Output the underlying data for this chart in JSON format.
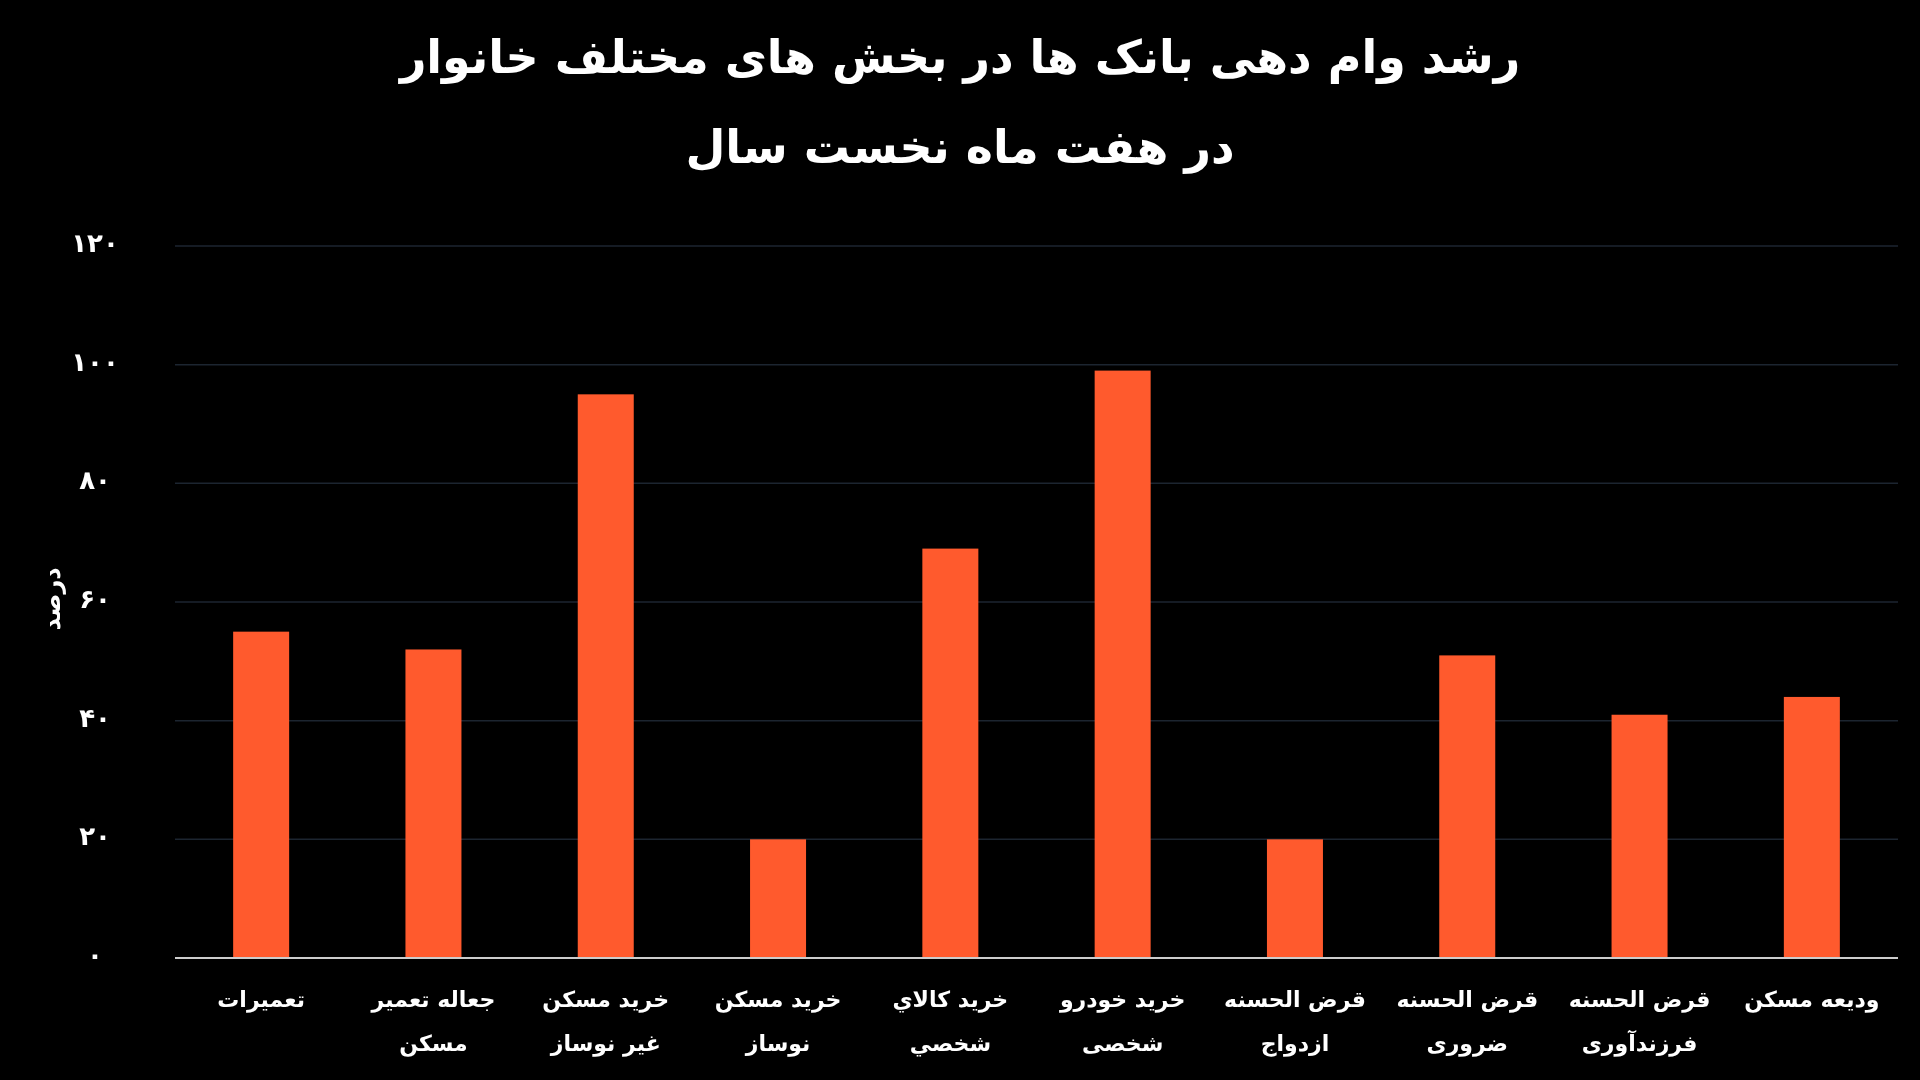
{
  "chart_data": {
    "type": "bar",
    "title": "رشد وام دهی بانک ها در بخش های مختلف خانوار",
    "subtitle": "در هفت ماه نخست  سال",
    "ylabel": "درصد",
    "categories": [
      "تعمیرات",
      "جعاله تعمیر مسکن",
      "خرید مسکن غیر نوساز",
      "خرید مسکن نوساز",
      "خرید کالاي شخصي",
      "خرید خودرو شخصی",
      "قرض الحسنه ازدواج",
      "قرض الحسنه ضروری",
      "قرض الحسنه فرزندآوری",
      "ودیعه مسکن"
    ],
    "values": [
      55,
      52,
      95,
      20,
      69,
      99,
      20,
      51,
      41,
      44
    ],
    "color": "#ff5a2d",
    "ylim": [
      0,
      120
    ],
    "yticks": [
      {
        "value": 0,
        "label": "۰"
      },
      {
        "value": 20,
        "label": "۲۰"
      },
      {
        "value": 40,
        "label": "۴۰"
      },
      {
        "value": 60,
        "label": "۶۰"
      },
      {
        "value": 80,
        "label": "۸۰"
      },
      {
        "value": 100,
        "label": "۱۰۰"
      },
      {
        "value": 120,
        "label": "۱۲۰"
      }
    ],
    "grid": "y"
  }
}
